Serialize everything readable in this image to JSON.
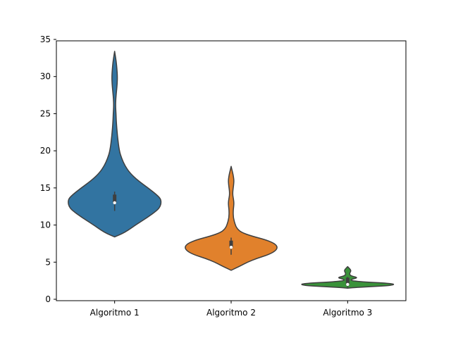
{
  "chart_data": {
    "type": "violin",
    "title": "",
    "xlabel": "",
    "ylabel": "",
    "ylim": [
      0,
      35
    ],
    "yticks": [
      0,
      5,
      10,
      15,
      20,
      25,
      30,
      35
    ],
    "categories": [
      "Algoritmo 1",
      "Algoritmo 2",
      "Algoritmo 3"
    ],
    "colors": [
      "#3274a1",
      "#e1812c",
      "#3a923a"
    ],
    "edge_color": "#3f3f3f",
    "grid": false,
    "legend": "none",
    "series": [
      {
        "category": "Algoritmo 1",
        "median": 13,
        "q1": 12.9,
        "q3": 14.1,
        "whisker_low": 11.9,
        "whisker_high": 14.5,
        "min": 8.4,
        "max": 33.4,
        "density": [
          [
            8.4,
            0.0
          ],
          [
            9,
            0.22
          ],
          [
            10,
            0.45
          ],
          [
            11,
            0.7
          ],
          [
            12,
            0.92
          ],
          [
            12.5,
            0.98
          ],
          [
            13,
            1.0
          ],
          [
            13.5,
            0.99
          ],
          [
            14,
            0.92
          ],
          [
            15,
            0.72
          ],
          [
            16,
            0.5
          ],
          [
            17,
            0.33
          ],
          [
            18,
            0.22
          ],
          [
            19,
            0.15
          ],
          [
            20,
            0.1
          ],
          [
            22,
            0.06
          ],
          [
            24,
            0.035
          ],
          [
            25,
            0.03
          ],
          [
            26,
            0.02
          ],
          [
            27,
            0.025
          ],
          [
            28,
            0.04
          ],
          [
            29,
            0.055
          ],
          [
            30,
            0.06
          ],
          [
            31,
            0.05
          ],
          [
            32,
            0.035
          ],
          [
            33,
            0.01
          ],
          [
            33.4,
            0.0
          ]
        ]
      },
      {
        "category": "Algoritmo 2",
        "median": 7,
        "q1": 6.9,
        "q3": 7.9,
        "whisker_low": 6.0,
        "whisker_high": 8.3,
        "min": 3.9,
        "max": 17.9,
        "density": [
          [
            3.9,
            0.0
          ],
          [
            4.5,
            0.2
          ],
          [
            5,
            0.35
          ],
          [
            5.5,
            0.55
          ],
          [
            6,
            0.8
          ],
          [
            6.5,
            0.95
          ],
          [
            7,
            1.0
          ],
          [
            7.5,
            0.94
          ],
          [
            8,
            0.75
          ],
          [
            8.5,
            0.45
          ],
          [
            9,
            0.22
          ],
          [
            9.5,
            0.13
          ],
          [
            10,
            0.09
          ],
          [
            11,
            0.045
          ],
          [
            12,
            0.045
          ],
          [
            12.5,
            0.055
          ],
          [
            13,
            0.06
          ],
          [
            13.5,
            0.05
          ],
          [
            14,
            0.035
          ],
          [
            14.5,
            0.035
          ],
          [
            15,
            0.045
          ],
          [
            15.5,
            0.055
          ],
          [
            16,
            0.06
          ],
          [
            16.5,
            0.05
          ],
          [
            17,
            0.035
          ],
          [
            17.5,
            0.015
          ],
          [
            17.9,
            0.0
          ]
        ]
      },
      {
        "category": "Algoritmo 3",
        "median": 2,
        "q1": 1.9,
        "q3": 2.9,
        "whisker_low": 1.6,
        "whisker_high": 3.0,
        "min": 1.5,
        "max": 4.4,
        "density": [
          [
            1.5,
            0.0
          ],
          [
            1.6,
            0.2
          ],
          [
            1.7,
            0.5
          ],
          [
            1.8,
            0.8
          ],
          [
            1.9,
            0.95
          ],
          [
            2.0,
            1.0
          ],
          [
            2.1,
            0.95
          ],
          [
            2.2,
            0.75
          ],
          [
            2.3,
            0.45
          ],
          [
            2.4,
            0.22
          ],
          [
            2.5,
            0.1
          ],
          [
            2.6,
            0.07
          ],
          [
            2.7,
            0.09
          ],
          [
            2.8,
            0.16
          ],
          [
            2.9,
            0.2
          ],
          [
            3.0,
            0.17
          ],
          [
            3.1,
            0.1
          ],
          [
            3.3,
            0.04
          ],
          [
            3.6,
            0.05
          ],
          [
            3.8,
            0.07
          ],
          [
            4.0,
            0.06
          ],
          [
            4.2,
            0.03
          ],
          [
            4.4,
            0.0
          ]
        ]
      }
    ]
  }
}
